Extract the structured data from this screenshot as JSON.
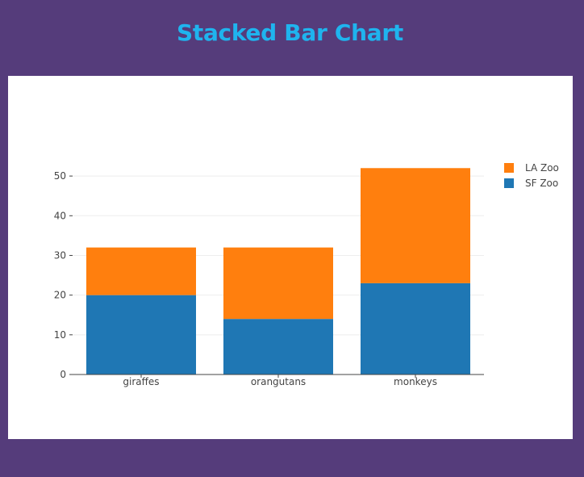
{
  "page": {
    "title": "Stacked Bar Chart"
  },
  "chart_data": {
    "type": "bar",
    "mode": "stacked",
    "title": "",
    "xlabel": "",
    "ylabel": "",
    "categories": [
      "giraffes",
      "orangutans",
      "monkeys"
    ],
    "series": [
      {
        "name": "SF Zoo",
        "values": [
          20,
          14,
          23
        ],
        "color": "#1f77b4"
      },
      {
        "name": "LA Zoo",
        "values": [
          12,
          18,
          29
        ],
        "color": "#ff7f0e"
      }
    ],
    "ylim": [
      0,
      54.7
    ],
    "yticks": [
      0,
      10,
      20,
      30,
      40,
      50
    ],
    "grid": true,
    "legend_position": "top-right"
  }
}
